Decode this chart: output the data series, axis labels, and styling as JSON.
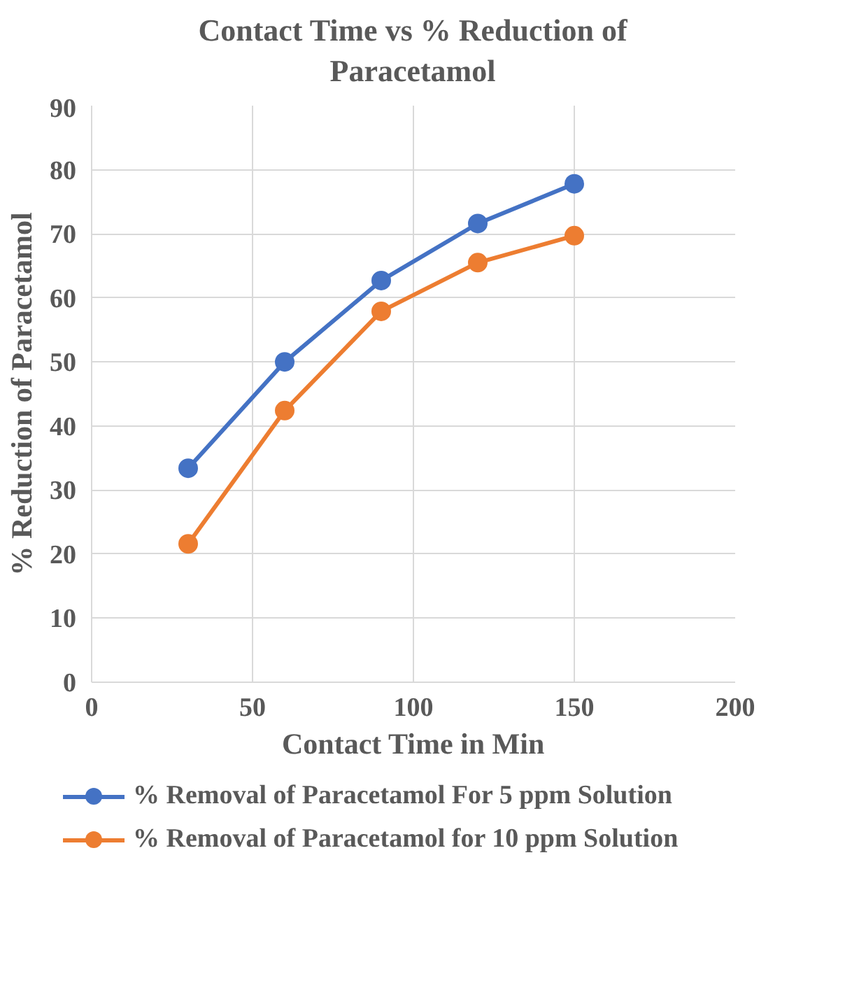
{
  "chart_data": {
    "type": "line",
    "title": "Contact Time vs % Reduction of Paracetamol",
    "xlabel": "Contact Time in Min",
    "ylabel": "% Reduction of Paracetamol",
    "x": [
      30,
      60,
      90,
      120,
      150
    ],
    "series": [
      {
        "name": "% Removal of Paracetamol For 5 ppm Solution",
        "color": "#4472c4",
        "values": [
          33.4,
          50.0,
          62.7,
          71.6,
          77.8
        ]
      },
      {
        "name": "% Removal of Paracetamol for 10 ppm Solution",
        "color": "#ed7d31",
        "values": [
          21.6,
          42.4,
          57.9,
          65.5,
          69.7
        ]
      }
    ],
    "xlim": [
      0,
      200
    ],
    "xticks": [
      0,
      50,
      100,
      150,
      200
    ],
    "ylim": [
      0,
      90
    ],
    "yticks": [
      0,
      10,
      20,
      30,
      40,
      50,
      60,
      70,
      80,
      90
    ],
    "grid": true,
    "legend": "bottom",
    "marker": "circle",
    "line_style": "solid"
  }
}
